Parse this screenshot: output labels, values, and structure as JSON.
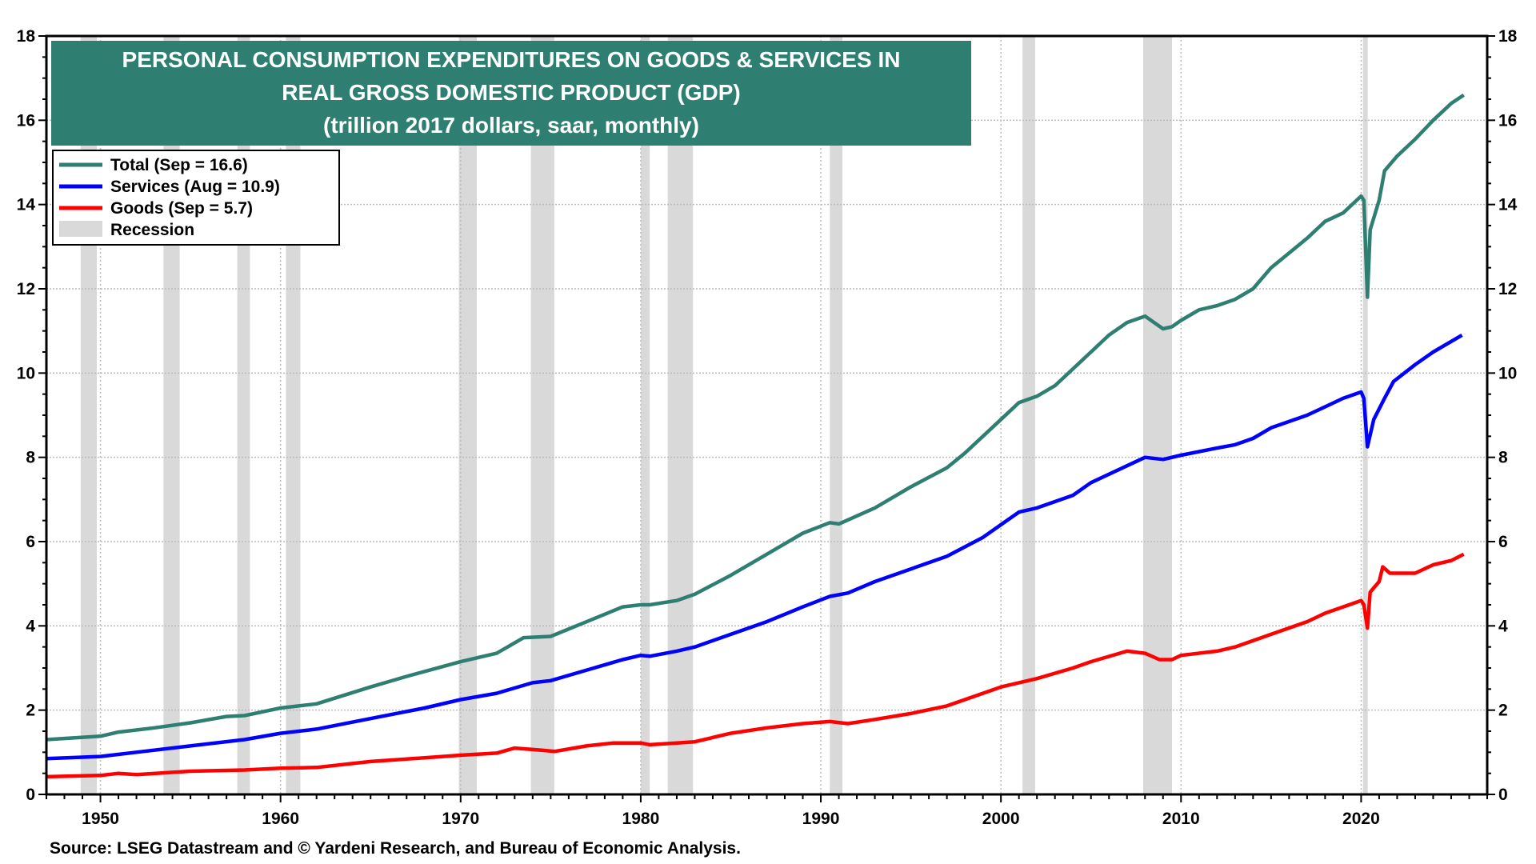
{
  "chart_data": {
    "type": "line",
    "title": [
      "PERSONAL CONSUMPTION EXPENDITURES ON GOODS & SERVICES IN",
      "REAL GROSS DOMESTIC PRODUCT (GDP)",
      "(trillion 2017 dollars, saar, monthly)"
    ],
    "source": "Source: LSEG Datastream and © Yardeni Research, and Bureau of Economic Analysis.",
    "xlim": [
      1947,
      2027
    ],
    "ylim": [
      0,
      18
    ],
    "x_ticks": [
      1950,
      1960,
      1970,
      1980,
      1990,
      2000,
      2010,
      2020
    ],
    "y_ticks": [
      0,
      2,
      4,
      6,
      8,
      10,
      12,
      14,
      16,
      18
    ],
    "grid": true,
    "legend_placement": "top-left",
    "title_box_color": "#2e7f72",
    "recession_color": "#d9d9d9",
    "recessions": [
      [
        1948.9,
        1949.8
      ],
      [
        1953.5,
        1954.4
      ],
      [
        1957.6,
        1958.3
      ],
      [
        1960.3,
        1961.1
      ],
      [
        1969.9,
        1970.9
      ],
      [
        1973.9,
        1975.2
      ],
      [
        1980.0,
        1980.5
      ],
      [
        1981.5,
        1982.9
      ],
      [
        1990.5,
        1991.2
      ],
      [
        2001.2,
        2001.9
      ],
      [
        2007.9,
        2009.5
      ],
      [
        2020.1,
        2020.3
      ]
    ],
    "legend": [
      {
        "label": "Total  (Sep = 16.6)",
        "color": "#2e7f72",
        "kind": "line"
      },
      {
        "label": "Services (Aug = 10.9)",
        "color": "#0000ff",
        "kind": "line"
      },
      {
        "label": "Goods (Sep = 5.7)",
        "color": "#ff0000",
        "kind": "line"
      },
      {
        "label": "Recession",
        "color": "#d9d9d9",
        "kind": "box"
      }
    ],
    "series": [
      {
        "name": "Total",
        "color": "#2e7f72",
        "points": [
          [
            1947,
            1.3
          ],
          [
            1950,
            1.38
          ],
          [
            1951,
            1.48
          ],
          [
            1953,
            1.58
          ],
          [
            1955,
            1.7
          ],
          [
            1957,
            1.85
          ],
          [
            1958,
            1.87
          ],
          [
            1960,
            2.05
          ],
          [
            1962,
            2.15
          ],
          [
            1965,
            2.55
          ],
          [
            1967,
            2.8
          ],
          [
            1970,
            3.15
          ],
          [
            1972,
            3.35
          ],
          [
            1973.5,
            3.72
          ],
          [
            1975,
            3.75
          ],
          [
            1977,
            4.1
          ],
          [
            1979,
            4.45
          ],
          [
            1980,
            4.5
          ],
          [
            1980.5,
            4.5
          ],
          [
            1982,
            4.6
          ],
          [
            1983,
            4.75
          ],
          [
            1985,
            5.2
          ],
          [
            1987,
            5.7
          ],
          [
            1989,
            6.2
          ],
          [
            1990.5,
            6.45
          ],
          [
            1991,
            6.42
          ],
          [
            1993,
            6.8
          ],
          [
            1995,
            7.3
          ],
          [
            1997,
            7.75
          ],
          [
            1998,
            8.1
          ],
          [
            1999,
            8.5
          ],
          [
            2000,
            8.9
          ],
          [
            2001,
            9.3
          ],
          [
            2002,
            9.45
          ],
          [
            2003,
            9.7
          ],
          [
            2005,
            10.5
          ],
          [
            2006,
            10.9
          ],
          [
            2007,
            11.2
          ],
          [
            2008,
            11.35
          ],
          [
            2009,
            11.05
          ],
          [
            2009.5,
            11.1
          ],
          [
            2010,
            11.25
          ],
          [
            2011,
            11.5
          ],
          [
            2012,
            11.6
          ],
          [
            2013,
            11.75
          ],
          [
            2014,
            12.0
          ],
          [
            2015,
            12.5
          ],
          [
            2016,
            12.85
          ],
          [
            2017,
            13.2
          ],
          [
            2018,
            13.6
          ],
          [
            2019,
            13.8
          ],
          [
            2020.0,
            14.2
          ],
          [
            2020.15,
            14.1
          ],
          [
            2020.35,
            11.8
          ],
          [
            2020.5,
            13.4
          ],
          [
            2021.0,
            14.1
          ],
          [
            2021.3,
            14.8
          ],
          [
            2022,
            15.15
          ],
          [
            2023,
            15.55
          ],
          [
            2024,
            16.0
          ],
          [
            2025,
            16.4
          ],
          [
            2025.7,
            16.6
          ]
        ]
      },
      {
        "name": "Services",
        "color": "#0000ff",
        "points": [
          [
            1947,
            0.85
          ],
          [
            1950,
            0.9
          ],
          [
            1952,
            1.0
          ],
          [
            1955,
            1.15
          ],
          [
            1958,
            1.3
          ],
          [
            1960,
            1.45
          ],
          [
            1962,
            1.55
          ],
          [
            1965,
            1.8
          ],
          [
            1968,
            2.05
          ],
          [
            1970,
            2.25
          ],
          [
            1972,
            2.4
          ],
          [
            1974,
            2.65
          ],
          [
            1975,
            2.7
          ],
          [
            1977,
            2.95
          ],
          [
            1979,
            3.2
          ],
          [
            1980,
            3.3
          ],
          [
            1980.5,
            3.28
          ],
          [
            1982,
            3.4
          ],
          [
            1983,
            3.5
          ],
          [
            1985,
            3.8
          ],
          [
            1987,
            4.1
          ],
          [
            1989,
            4.45
          ],
          [
            1990.5,
            4.7
          ],
          [
            1991.5,
            4.78
          ],
          [
            1993,
            5.05
          ],
          [
            1995,
            5.35
          ],
          [
            1997,
            5.65
          ],
          [
            1999,
            6.1
          ],
          [
            2000,
            6.4
          ],
          [
            2001,
            6.7
          ],
          [
            2002,
            6.8
          ],
          [
            2004,
            7.1
          ],
          [
            2005,
            7.4
          ],
          [
            2007,
            7.8
          ],
          [
            2008,
            8.0
          ],
          [
            2009,
            7.95
          ],
          [
            2010,
            8.05
          ],
          [
            2012,
            8.22
          ],
          [
            2013,
            8.3
          ],
          [
            2014,
            8.45
          ],
          [
            2015,
            8.7
          ],
          [
            2017,
            9.0
          ],
          [
            2018,
            9.2
          ],
          [
            2019,
            9.4
          ],
          [
            2020.0,
            9.55
          ],
          [
            2020.15,
            9.4
          ],
          [
            2020.35,
            8.25
          ],
          [
            2020.7,
            8.9
          ],
          [
            2021.3,
            9.4
          ],
          [
            2021.8,
            9.8
          ],
          [
            2023,
            10.2
          ],
          [
            2024,
            10.5
          ],
          [
            2025.6,
            10.9
          ]
        ]
      },
      {
        "name": "Goods",
        "color": "#ff0000",
        "points": [
          [
            1947,
            0.42
          ],
          [
            1950,
            0.45
          ],
          [
            1951,
            0.5
          ],
          [
            1952,
            0.47
          ],
          [
            1955,
            0.55
          ],
          [
            1958,
            0.58
          ],
          [
            1960,
            0.62
          ],
          [
            1962,
            0.64
          ],
          [
            1965,
            0.78
          ],
          [
            1968,
            0.87
          ],
          [
            1970,
            0.93
          ],
          [
            1972,
            0.98
          ],
          [
            1973,
            1.1
          ],
          [
            1974.5,
            1.05
          ],
          [
            1975.2,
            1.02
          ],
          [
            1977,
            1.15
          ],
          [
            1978.5,
            1.22
          ],
          [
            1980,
            1.22
          ],
          [
            1980.5,
            1.18
          ],
          [
            1982,
            1.22
          ],
          [
            1983,
            1.25
          ],
          [
            1985,
            1.45
          ],
          [
            1987,
            1.58
          ],
          [
            1989,
            1.68
          ],
          [
            1990.5,
            1.73
          ],
          [
            1991.5,
            1.68
          ],
          [
            1993,
            1.78
          ],
          [
            1995,
            1.92
          ],
          [
            1997,
            2.1
          ],
          [
            1999,
            2.4
          ],
          [
            2000,
            2.55
          ],
          [
            2001,
            2.65
          ],
          [
            2002,
            2.75
          ],
          [
            2004,
            3.0
          ],
          [
            2005,
            3.15
          ],
          [
            2007,
            3.4
          ],
          [
            2008,
            3.35
          ],
          [
            2008.8,
            3.2
          ],
          [
            2009.5,
            3.2
          ],
          [
            2010,
            3.3
          ],
          [
            2012,
            3.4
          ],
          [
            2013,
            3.5
          ],
          [
            2015,
            3.8
          ],
          [
            2017,
            4.1
          ],
          [
            2018,
            4.3
          ],
          [
            2019,
            4.45
          ],
          [
            2020.0,
            4.6
          ],
          [
            2020.15,
            4.5
          ],
          [
            2020.35,
            3.95
          ],
          [
            2020.5,
            4.8
          ],
          [
            2021.0,
            5.05
          ],
          [
            2021.2,
            5.4
          ],
          [
            2021.6,
            5.25
          ],
          [
            2022,
            5.25
          ],
          [
            2023,
            5.25
          ],
          [
            2024,
            5.45
          ],
          [
            2025,
            5.55
          ],
          [
            2025.7,
            5.7
          ]
        ]
      }
    ]
  }
}
